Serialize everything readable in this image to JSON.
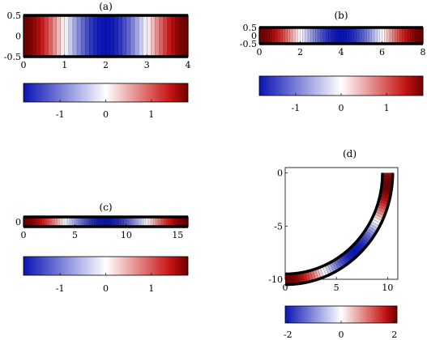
{
  "chart_data": {
    "colormap": {
      "negative": "#0a14b4",
      "neutral": "#ffffff",
      "positive": "#c81414",
      "dark_end": "#6e0000"
    },
    "panels": [
      {
        "id": "a",
        "title": "(a)",
        "type": "heatmap",
        "xlim": [
          0,
          4
        ],
        "ylim": [
          -0.5,
          0.5
        ],
        "xticks": [
          0,
          1,
          2,
          3,
          4
        ],
        "yticks": [
          0.5,
          0,
          -0.5
        ],
        "xtick_labels": [
          "0",
          "1",
          "2",
          "3",
          "4"
        ],
        "ytick_labels": [
          "0.5",
          "0",
          "-0.5"
        ],
        "field_value_range": [
          -1.8,
          1.8
        ],
        "colorbar": {
          "range": [
            -1.8,
            1.8
          ],
          "ticks": [
            -1,
            0,
            1
          ],
          "tick_labels": [
            "-1",
            "0",
            "1"
          ]
        }
      },
      {
        "id": "b",
        "title": "(b)",
        "type": "heatmap",
        "xlim": [
          0,
          8
        ],
        "ylim": [
          -0.5,
          0.5
        ],
        "xticks": [
          0,
          2,
          4,
          6,
          8
        ],
        "yticks": [
          0.5,
          0,
          -0.5
        ],
        "xtick_labels": [
          "0",
          "2",
          "4",
          "6",
          "8"
        ],
        "ytick_labels": [
          "0.5",
          "0",
          "-0.5"
        ],
        "field_value_range": [
          -1.8,
          1.8
        ],
        "colorbar": {
          "range": [
            -1.8,
            1.8
          ],
          "ticks": [
            -1,
            0,
            1
          ],
          "tick_labels": [
            "-1",
            "0",
            "1"
          ]
        }
      },
      {
        "id": "c",
        "title": "(c)",
        "type": "heatmap",
        "xlim": [
          0,
          16
        ],
        "ylim": [
          -0.5,
          0.5
        ],
        "xticks": [
          0,
          5,
          10,
          15
        ],
        "yticks": [
          0
        ],
        "xtick_labels": [
          "0",
          "5",
          "10",
          "15"
        ],
        "ytick_labels": [
          "0"
        ],
        "field_value_range": [
          -1.8,
          1.8
        ],
        "colorbar": {
          "range": [
            -1.8,
            1.8
          ],
          "ticks": [
            -1,
            0,
            1
          ],
          "tick_labels": [
            "-1",
            "0",
            "1"
          ]
        }
      },
      {
        "id": "d",
        "title": "(d)",
        "type": "heatmap",
        "geometry": "quarter-annulus",
        "xlim": [
          0,
          11
        ],
        "ylim": [
          -10,
          0.5
        ],
        "xticks": [
          0,
          5,
          10
        ],
        "yticks": [
          0,
          -5,
          -10
        ],
        "xtick_labels": [
          "0",
          "5",
          "10"
        ],
        "ytick_labels": [
          "0",
          "-5",
          "-10"
        ],
        "field_value_range": [
          -2,
          2
        ],
        "colorbar": {
          "range": [
            -2.1,
            2.1
          ],
          "ticks": [
            -2,
            0,
            2
          ],
          "tick_labels": [
            "-2",
            "0",
            "2"
          ]
        }
      }
    ]
  }
}
